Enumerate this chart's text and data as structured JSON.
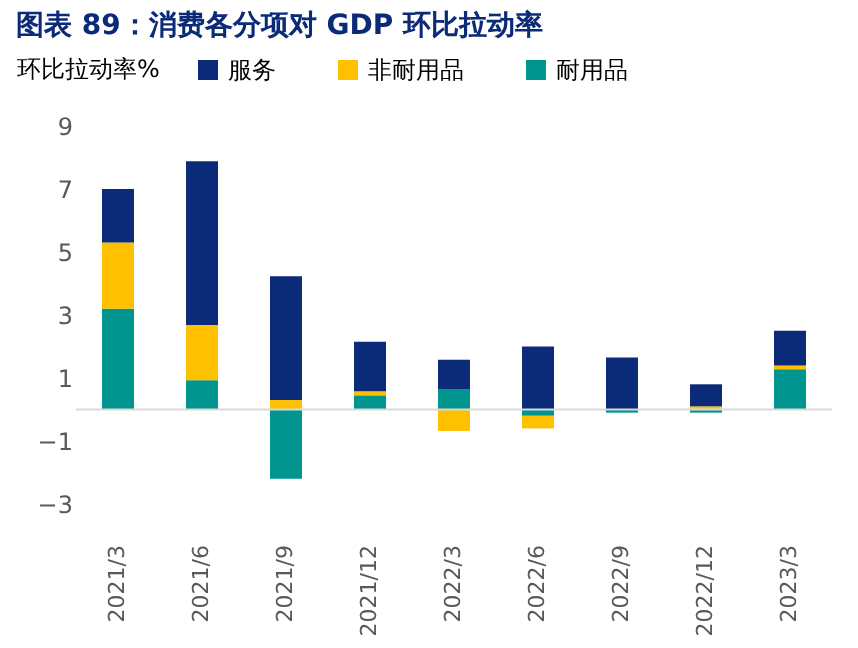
{
  "chart_data": {
    "type": "bar",
    "title": "图表 89：消费各分项对 GDP 环比拉动率",
    "ylabel": "环比拉动率%",
    "stacked": true,
    "legend": "top",
    "grid": false,
    "categories": [
      "2021/3",
      "2021/6",
      "2021/9",
      "2021/12",
      "2022/3",
      "2022/6",
      "2022/9",
      "2022/12",
      "2023/3"
    ],
    "series": [
      {
        "name": "耐用品",
        "color": "#00968f",
        "values": [
          3.2,
          0.93,
          -2.2,
          0.45,
          0.65,
          -0.2,
          -0.1,
          -0.1,
          1.28
        ]
      },
      {
        "name": "非耐用品",
        "color": "#ffc000",
        "values": [
          2.1,
          1.75,
          0.3,
          0.13,
          -0.68,
          -0.4,
          0,
          0.1,
          0.12
        ]
      },
      {
        "name": "服务",
        "color": "#0b2a78",
        "values": [
          1.7,
          5.2,
          3.93,
          1.57,
          0.93,
          2.0,
          1.65,
          0.7,
          1.1
        ]
      }
    ],
    "ylim": [
      -3,
      9
    ],
    "yticks": [
      -3,
      -1,
      1,
      3,
      5,
      7,
      9
    ]
  }
}
